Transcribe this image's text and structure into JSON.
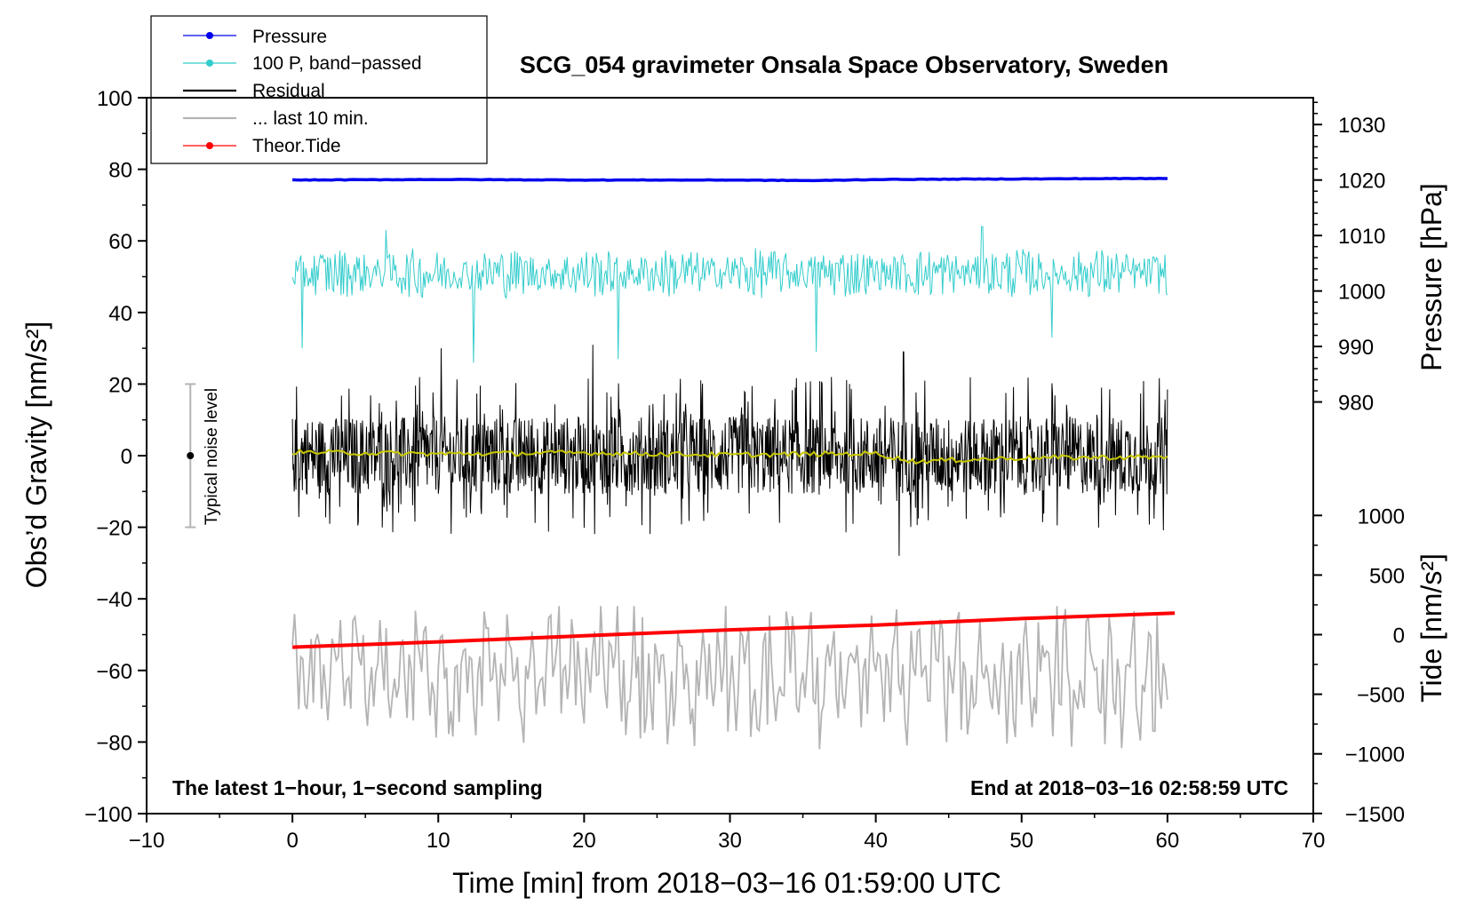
{
  "chart_data": {
    "type": "line",
    "title": "SCG_054 gravimeter Onsala Space Observatory, Sweden",
    "xlabel": "Time [min] from 2018−03−16 01:59:00 UTC",
    "ylabel_left": "Obs’d Gravity [nm/s²]",
    "ylabel_right_pressure": "Pressure [hPa]",
    "ylabel_right_tide": "Tide [nm/s²]",
    "xlim": [
      -10,
      70
    ],
    "ylim_left": [
      -100,
      100
    ],
    "x_ticks": [
      -10,
      0,
      10,
      20,
      30,
      40,
      50,
      60,
      70
    ],
    "x_tick_labels": [
      "−10",
      "0",
      "10",
      "20",
      "30",
      "40",
      "50",
      "60",
      "70"
    ],
    "y_left_ticks": [
      -100,
      -80,
      -60,
      -40,
      -20,
      0,
      20,
      40,
      60,
      80,
      100
    ],
    "y_left_tick_labels": [
      "−100",
      "−80",
      "−60",
      "−40",
      "−20",
      "0",
      "20",
      "40",
      "60",
      "80",
      "100"
    ],
    "pressure_axis": {
      "ticks": [
        980,
        990,
        1000,
        1010,
        1020,
        1030
      ],
      "labels": [
        "980",
        "990",
        "1000",
        "1010",
        "1020",
        "1030"
      ],
      "left_equivalent_at_980": 15,
      "left_units_per_hpa": 1.55
    },
    "tide_axis": {
      "ticks": [
        -1500,
        -1000,
        -500,
        0,
        500,
        1000
      ],
      "labels": [
        "−1500",
        "−1000",
        "−500",
        "0",
        "500",
        "1000"
      ],
      "left_equivalent_at_0": -50,
      "left_units_per_unit": 0.0333
    },
    "series": [
      {
        "name": "Pressure",
        "color": "#0000ee",
        "axis": "pressure",
        "x": [
          0,
          10,
          20,
          30,
          36,
          40,
          50,
          60
        ],
        "values": [
          1020.0,
          1020.1,
          1020.0,
          1020.0,
          1019.9,
          1020.1,
          1020.2,
          1020.3
        ]
      },
      {
        "name": "100 P, band−passed",
        "color": "#33cccc",
        "axis": "left",
        "x_range": [
          0,
          60
        ],
        "mean": 51,
        "spikes": [
          {
            "x": 0.7,
            "y": 30
          },
          {
            "x": 6.4,
            "y": 63
          },
          {
            "x": 12.4,
            "y": 26
          },
          {
            "x": 22.3,
            "y": 27
          },
          {
            "x": 35.9,
            "y": 29
          },
          {
            "x": 47.3,
            "y": 64
          },
          {
            "x": 52.1,
            "y": 33
          }
        ]
      },
      {
        "name": "Residual",
        "color": "#000000",
        "axis": "left",
        "x_range": [
          0,
          60
        ],
        "mean": 0,
        "amplitude": 20,
        "spikes": [
          {
            "x": 10.2,
            "y": 30
          },
          {
            "x": 10.2,
            "y": -31
          },
          {
            "x": 20.6,
            "y": 31
          },
          {
            "x": 41.6,
            "y": -28
          },
          {
            "x": 41.9,
            "y": 29
          }
        ]
      },
      {
        "name": "... last 10 min.",
        "color": "#b4b4b4",
        "axis": "left",
        "x_range": [
          0,
          60
        ],
        "mean": -61,
        "min": -82,
        "max": -42
      },
      {
        "name": "Theor.Tide",
        "color": "#ff0000",
        "axis": "tide",
        "x": [
          0,
          10,
          20,
          30,
          40,
          50,
          60.5
        ],
        "values": [
          -105,
          -60,
          -10,
          40,
          80,
          135,
          180
        ]
      },
      {
        "name": "Residual running mean",
        "color": "#c8c800",
        "axis": "left",
        "x": [
          0,
          10,
          20,
          30,
          40,
          42.5,
          50,
          60
        ],
        "values": [
          1,
          0.5,
          0.8,
          0.2,
          0.6,
          -1.6,
          -0.6,
          -0.4
        ]
      }
    ],
    "legend": {
      "position": "top-left",
      "entries": [
        {
          "label": "Pressure",
          "color": "#0000ee",
          "marker": "dot"
        },
        {
          "label": "100 P, band−passed",
          "color": "#33cccc",
          "marker": "dot"
        },
        {
          "label": "Residual",
          "color": "#000000",
          "marker": "none"
        },
        {
          "label": "... last 10 min.",
          "color": "#b4b4b4",
          "marker": "none"
        },
        {
          "label": "Theor.Tide",
          "color": "#ff0000",
          "marker": "dot"
        }
      ]
    },
    "noise_level": {
      "label": "Typical noise level",
      "x": -7,
      "center": 0,
      "low": -20,
      "high": 20
    },
    "annotations": {
      "bottom_left": "The latest 1−hour, 1−second sampling",
      "bottom_right": "End at 2018−03−16 02:58:59 UTC"
    }
  }
}
